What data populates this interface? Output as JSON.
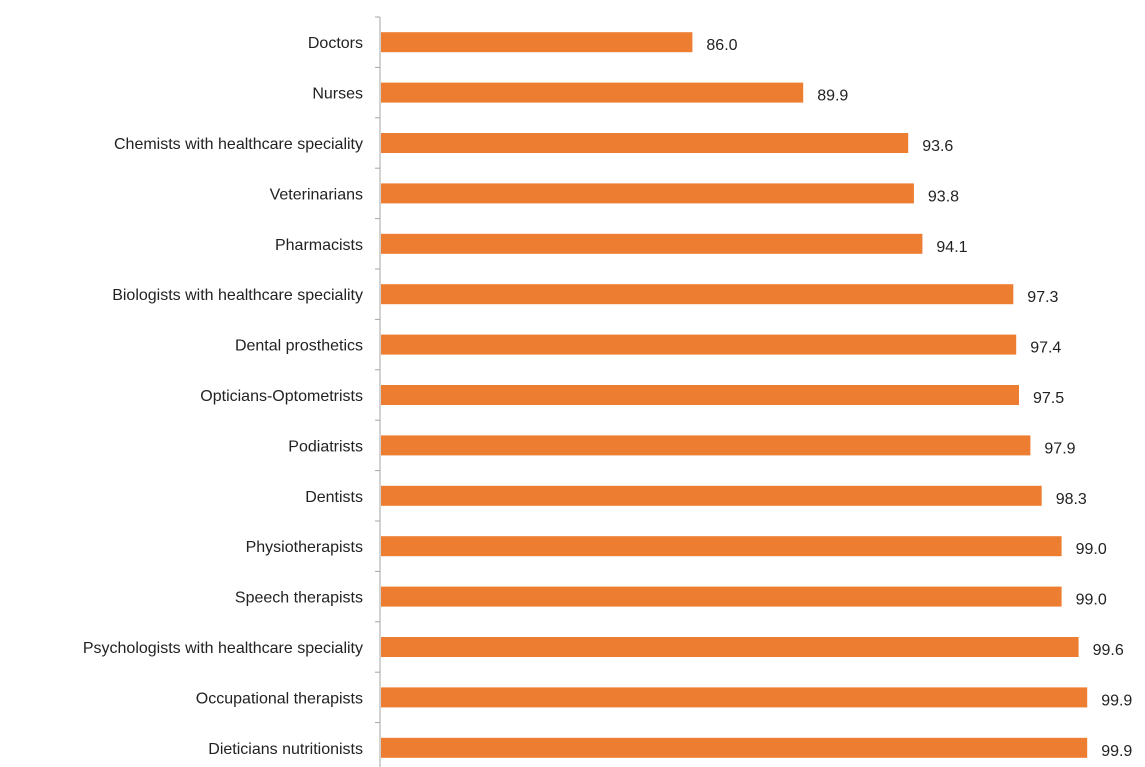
{
  "chart_data": {
    "type": "bar",
    "orientation": "horizontal",
    "categories": [
      "Doctors",
      "Nurses",
      "Chemists with healthcare speciality",
      "Veterinarians",
      "Pharmacists",
      "Biologists with healthcare speciality",
      "Dental prosthetics",
      "Opticians-Optometrists",
      "Podiatrists",
      "Dentists",
      "Physiotherapists",
      "Speech therapists",
      "Psychologists with healthcare speciality",
      "Occupational therapists",
      "Dieticians nutritionists"
    ],
    "values": [
      86.0,
      89.9,
      93.6,
      93.8,
      94.1,
      97.3,
      97.4,
      97.5,
      97.9,
      98.3,
      99.0,
      99.0,
      99.6,
      99.9,
      99.9
    ],
    "value_labels": [
      "86.0",
      "89.9",
      "93.6",
      "93.8",
      "94.1",
      "97.3",
      "97.4",
      "97.5",
      "97.9",
      "98.3",
      "99.0",
      "99.0",
      "99.6",
      "99.9",
      "99.9"
    ],
    "xlim": [
      75,
      100
    ],
    "grid": false,
    "bar_color": "#ED7D31"
  }
}
